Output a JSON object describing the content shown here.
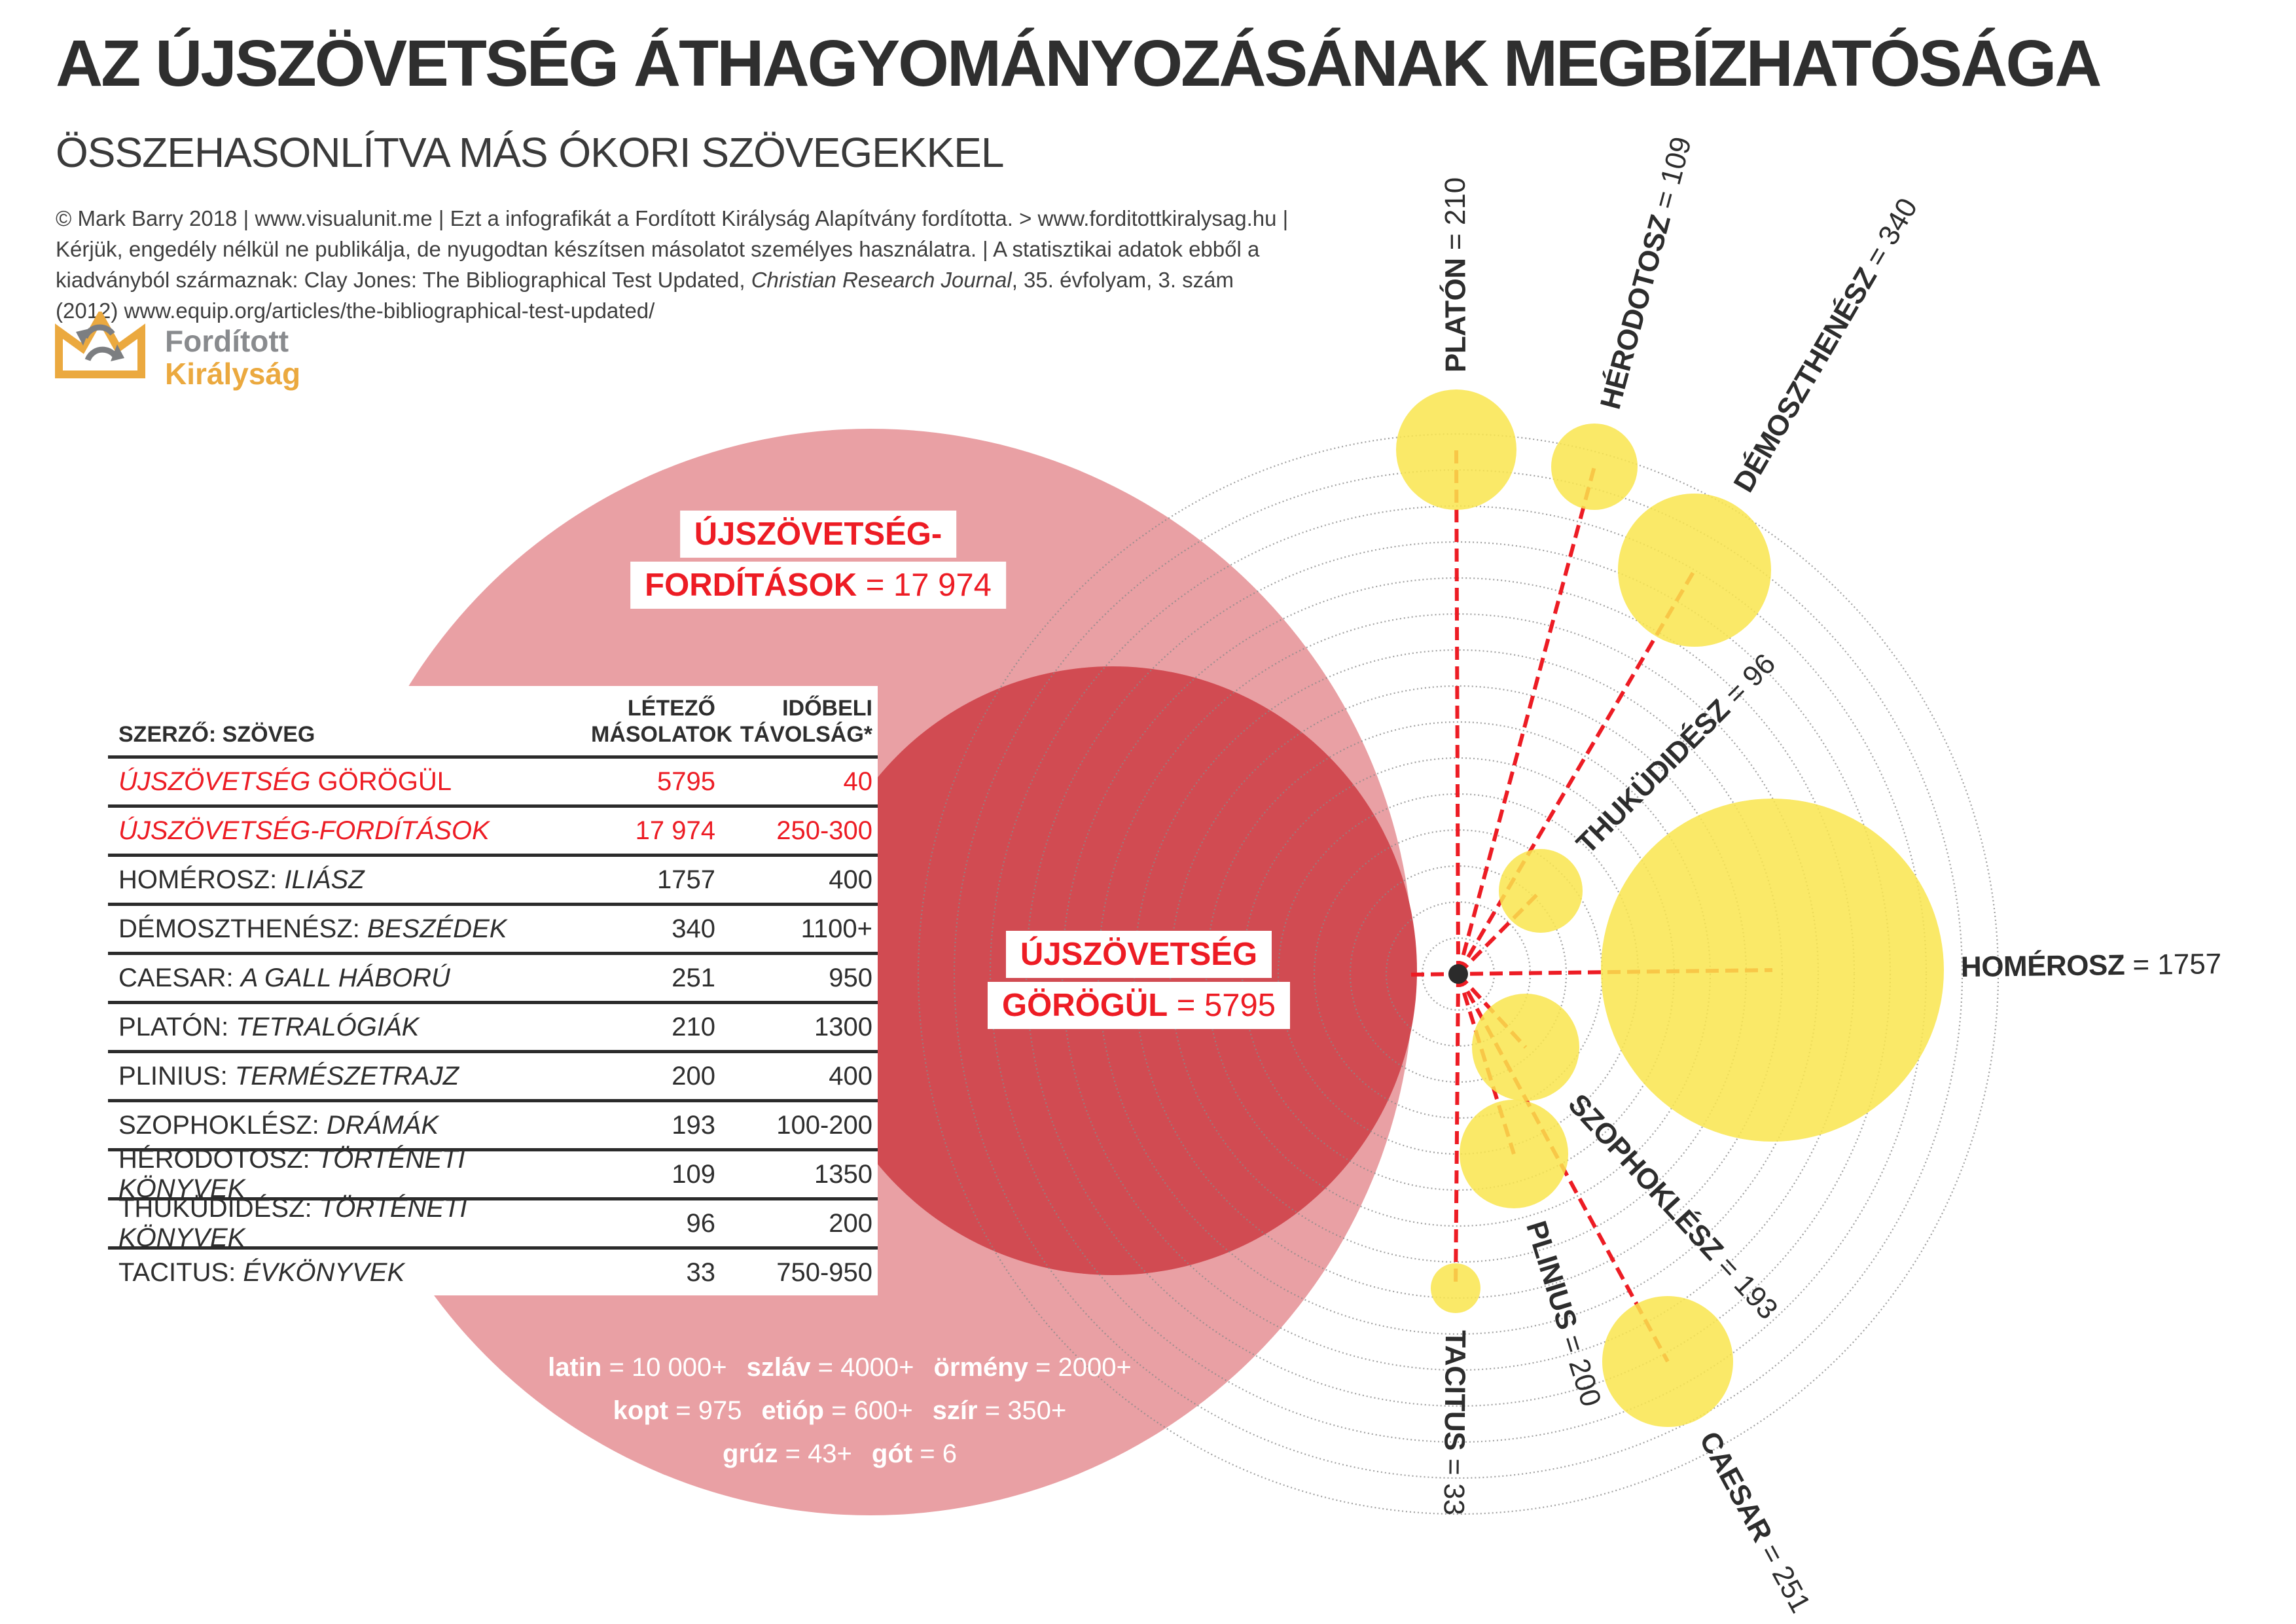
{
  "title": "AZ ÚJSZÖVETSÉG ÁTHAGYOMÁNYOZÁSÁNAK MEGBÍZHATÓSÁGA",
  "subtitle": "ÖSSZEHASONLÍTVA MÁS ÓKORI SZÖVEGEKKEL",
  "credits": {
    "line1": "© Mark Barry 2018 | www.visualunit.me | Ezt a infografikát a Fordított Királyság Alapítvány fordította. > www.forditottkiralysag.hu |",
    "line2": "Kérjük, engedély nélkül ne publikálja, de nyugodtan készítsen másolatot személyes használatra. | A statisztikai adatok ebből a",
    "line3_pre": "kiadványból származnak: Clay Jones: The Bibliographical Test Updated, ",
    "line3_italic": "Christian Research Journal",
    "line3_post": ", 35. évfolyam, 3. szám",
    "line4": "(2012) www.equip.org/articles/the-bibliographical-test-updated/"
  },
  "logo": {
    "word1": "Fordított",
    "word2": "Királyság"
  },
  "colors": {
    "pink": "#e9a0a4",
    "dark_red": "#d14b52",
    "red": "#ed1c24",
    "yellow": "rgba(249,229,77,0.85)",
    "gold": "#eba93f",
    "gray_logo": "#7c7e81",
    "ring_gray": "#8a8a8a",
    "ink": "#2d2d2d"
  },
  "table": {
    "col1_header": "SZERZŐ: SZÖVEG",
    "col2_header_line1": "LÉTEZŐ",
    "col2_header_line2": "MÁSOLATOK",
    "col3_header_line1": "IDŐBELI",
    "col3_header_line2": "TÁVOLSÁG*",
    "rows": [
      {
        "name_parts": [
          {
            "t": "ÚJSZÖVETSÉG",
            "i": true
          },
          {
            "t": " GÖRÖGÜL",
            "i": false
          }
        ],
        "copies": "5795",
        "distance": "40",
        "red": true
      },
      {
        "name_parts": [
          {
            "t": "ÚJSZÖVETSÉG-FORDÍTÁSOK",
            "i": true
          }
        ],
        "copies": "17 974",
        "distance": "250-300",
        "red": true
      },
      {
        "name_parts": [
          {
            "t": "HOMÉROSZ: ",
            "i": false
          },
          {
            "t": "ILIÁSZ",
            "i": true
          }
        ],
        "copies": "1757",
        "distance": "400",
        "red": false
      },
      {
        "name_parts": [
          {
            "t": "DÉMOSZTHENÉSZ: ",
            "i": false
          },
          {
            "t": "BESZÉDEK",
            "i": true
          }
        ],
        "copies": "340",
        "distance": "1100+",
        "red": false
      },
      {
        "name_parts": [
          {
            "t": "CAESAR: ",
            "i": false
          },
          {
            "t": "A GALL HÁBORÚ",
            "i": true
          }
        ],
        "copies": "251",
        "distance": "950",
        "red": false
      },
      {
        "name_parts": [
          {
            "t": "PLATÓN: ",
            "i": false
          },
          {
            "t": "TETRALÓGIÁK",
            "i": true
          }
        ],
        "copies": "210",
        "distance": "1300",
        "red": false
      },
      {
        "name_parts": [
          {
            "t": "PLINIUS: ",
            "i": false
          },
          {
            "t": "TERMÉSZETRAJZ",
            "i": true
          }
        ],
        "copies": "200",
        "distance": "400",
        "red": false
      },
      {
        "name_parts": [
          {
            "t": "SZOPHOKLÉSZ: ",
            "i": false
          },
          {
            "t": "DRÁMÁK",
            "i": true
          }
        ],
        "copies": "193",
        "distance": "100-200",
        "red": false
      },
      {
        "name_parts": [
          {
            "t": "HÉRODOTOSZ: ",
            "i": false
          },
          {
            "t": "TÖRTÉNETI KÖNYVEK",
            "i": true
          }
        ],
        "copies": "109",
        "distance": "1350",
        "red": false
      },
      {
        "name_parts": [
          {
            "t": "THUKÜDIDÉSZ: ",
            "i": false
          },
          {
            "t": "TÖRTÉNETI KÖNYVEK",
            "i": true
          }
        ],
        "copies": "96",
        "distance": "200",
        "red": false
      },
      {
        "name_parts": [
          {
            "t": "TACITUS: ",
            "i": false
          },
          {
            "t": "ÉVKÖNYVEK",
            "i": true
          }
        ],
        "copies": "33",
        "distance": "750-950",
        "red": false
      }
    ]
  },
  "nt_translations_label": {
    "line1": "ÚJSZÖVETSÉG-",
    "line2_bold": "FORDÍTÁSOK",
    "line2_value": "= 17 974"
  },
  "nt_greek_label": {
    "line1": "ÚJSZÖVETSÉG",
    "line2_bold": "GÖRÖGÜL",
    "line2_value": "= 5795"
  },
  "breakdown_lines": [
    [
      {
        "lang": "latin",
        "value": "10 000+"
      },
      {
        "lang": "szláv",
        "value": "4000+"
      },
      {
        "lang": "örmény",
        "value": "2000+"
      }
    ],
    [
      {
        "lang": "kopt",
        "value": "975"
      },
      {
        "lang": "etióp",
        "value": "600+"
      },
      {
        "lang": "szír",
        "value": "350+"
      }
    ],
    [
      {
        "lang": "grúz",
        "value": "43+"
      },
      {
        "lang": "gót",
        "value": "6"
      }
    ]
  ],
  "chart_data": {
    "type": "bubble",
    "title": "AZ ÚJSZÖVETSÉG ÁTHAGYOMÁNYOZÁSÁNAK MEGBÍZHATÓSÁGA",
    "subtitle": "ÖSSZEHASONLÍTVA MÁS ÓKORI SZÖVEGEKKEL",
    "legend_note": "bubble area = létező másolatok; radial layout around center dot; rings = időbeli távolság",
    "bubbles": [
      {
        "key": "nt_translations",
        "label": "ÚJSZÖVETSÉG-FORDÍTÁSOK",
        "copies": 17974,
        "copies_display": "17 974",
        "time_distance": "250-300",
        "color": "pink"
      },
      {
        "key": "nt_greek",
        "label": "ÚJSZÖVETSÉG GÖRÖGÜL",
        "copies": 5795,
        "copies_display": "5795",
        "time_distance": "40",
        "color": "dark_red"
      },
      {
        "key": "platon",
        "label": "PLATÓN",
        "copies": 210,
        "copies_display": "210",
        "time_distance": "1300",
        "color": "yellow"
      },
      {
        "key": "herodotosz",
        "label": "HÉRODOTOSZ",
        "copies": 109,
        "copies_display": "109",
        "time_distance": "1350",
        "color": "yellow"
      },
      {
        "key": "demoszthenesz",
        "label": "DÉMOSZTHENÉSZ",
        "copies": 340,
        "copies_display": "340",
        "time_distance": "1100+",
        "color": "yellow"
      },
      {
        "key": "thukudidesz",
        "label": "THUKÜDIDÉSZ",
        "copies": 96,
        "copies_display": "96",
        "time_distance": "200",
        "color": "yellow"
      },
      {
        "key": "homerosz",
        "label": "HOMÉROSZ",
        "copies": 1757,
        "copies_display": "1757",
        "time_distance": "400",
        "color": "yellow"
      },
      {
        "key": "szophoklesz",
        "label": "SZOPHOKLÉSZ",
        "copies": 193,
        "copies_display": "193",
        "time_distance": "100-200",
        "color": "yellow"
      },
      {
        "key": "plinius",
        "label": "PLINIUS",
        "copies": 200,
        "copies_display": "200",
        "time_distance": "400",
        "color": "yellow"
      },
      {
        "key": "tacitus",
        "label": "TACITUS",
        "copies": 33,
        "copies_display": "33",
        "time_distance": "750-950",
        "color": "yellow"
      },
      {
        "key": "caesar",
        "label": "CAESAR",
        "copies": 251,
        "copies_display": "251",
        "time_distance": "950",
        "color": "yellow"
      }
    ],
    "nt_translation_languages": [
      {
        "lang": "latin",
        "count": "10 000+"
      },
      {
        "lang": "szláv",
        "count": "4000+"
      },
      {
        "lang": "örmény",
        "count": "2000+"
      },
      {
        "lang": "kopt",
        "count": "975"
      },
      {
        "lang": "etióp",
        "count": "600+"
      },
      {
        "lang": "szír",
        "count": "350+"
      },
      {
        "lang": "grúz",
        "count": "43+"
      },
      {
        "lang": "gót",
        "count": "6"
      }
    ]
  }
}
